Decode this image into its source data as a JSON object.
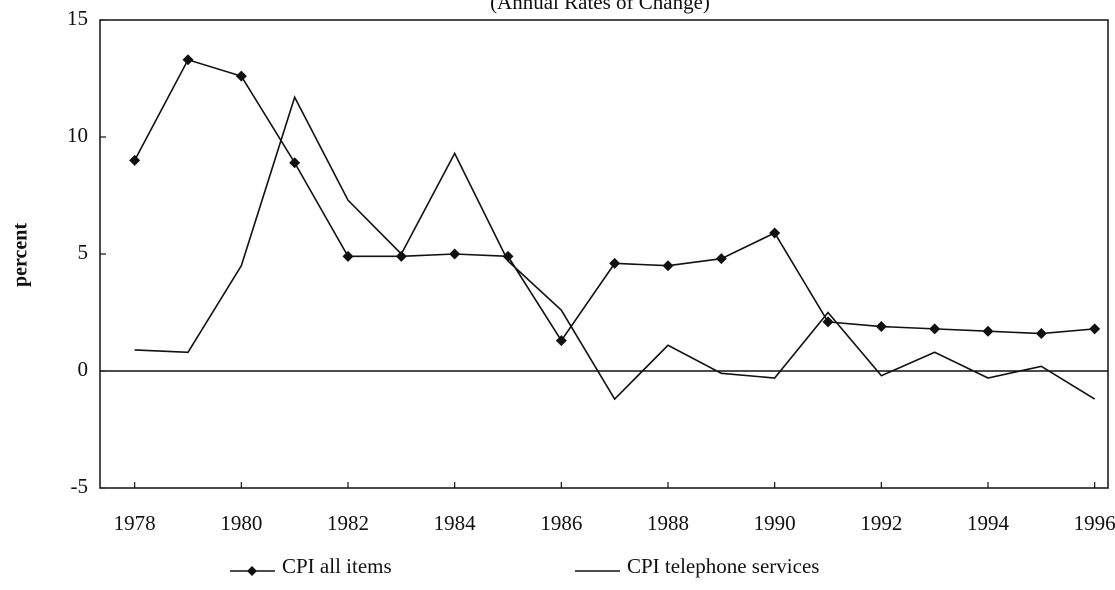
{
  "chart_data": {
    "type": "line",
    "subtitle": "(Annual Rates of Change)",
    "y_label": "percent",
    "x": [
      1978,
      1979,
      1980,
      1981,
      1982,
      1983,
      1984,
      1985,
      1986,
      1987,
      1988,
      1989,
      1990,
      1991,
      1992,
      1993,
      1994,
      1995,
      1996
    ],
    "series": [
      {
        "name": "CPI all items",
        "color": "#111111",
        "marker": "diamond",
        "values": [
          9.0,
          13.3,
          12.6,
          8.9,
          4.9,
          4.9,
          5.0,
          4.9,
          1.3,
          4.6,
          4.5,
          4.8,
          5.9,
          2.1,
          1.9,
          1.8,
          1.7,
          1.6,
          1.8
        ]
      },
      {
        "name": "CPI telephone services",
        "color": "#111111",
        "marker": "none",
        "values": [
          0.9,
          0.8,
          4.5,
          11.7,
          7.3,
          5.0,
          9.3,
          4.7,
          2.6,
          -1.2,
          1.1,
          -0.1,
          -0.3,
          2.5,
          -0.2,
          0.8,
          -0.3,
          0.2,
          -1.2
        ]
      }
    ],
    "xlim": [
      1977.35,
      1996.25
    ],
    "xticks": [
      1978,
      1980,
      1982,
      1984,
      1986,
      1988,
      1990,
      1992,
      1994,
      1996
    ],
    "ylim": [
      -5,
      15
    ],
    "yticks": [
      -5,
      0,
      5,
      10,
      15
    ],
    "zero_line": true,
    "legend": "bottom"
  }
}
